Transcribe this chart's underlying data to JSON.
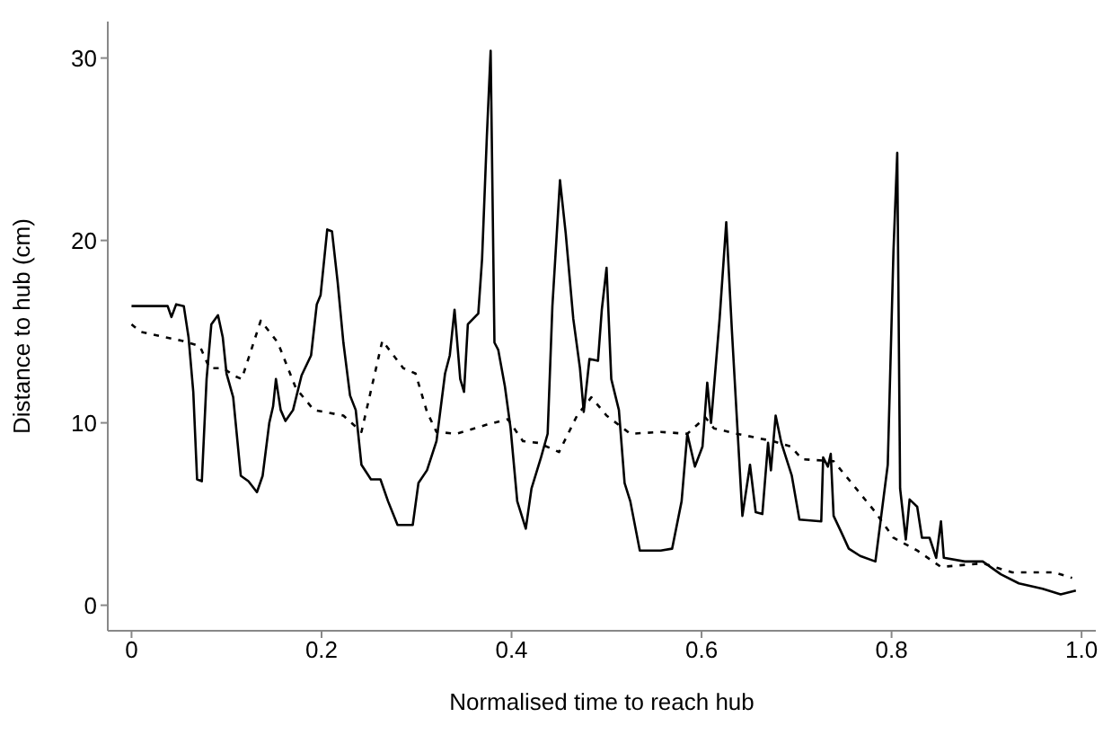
{
  "chart_data": {
    "type": "line",
    "xlabel": "Normalised time to reach hub",
    "ylabel": "Distance to hub  (cm)",
    "xlim": [
      -0.025,
      1.015
    ],
    "ylim": [
      -1.4,
      32
    ],
    "xticks": [
      0,
      0.2,
      0.4,
      0.6,
      0.8,
      {
        "value": 1,
        "label": "1.0"
      }
    ],
    "yticks": [
      0,
      10,
      20,
      30
    ],
    "marker": "none",
    "series": [
      {
        "color": "#000000",
        "line_style": "solid",
        "x": [
          0,
          0.038,
          0.042,
          0.047,
          0.055,
          0.06,
          0.065,
          0.069,
          0.074,
          0.079,
          0.084,
          0.091,
          0.096,
          0.1,
          0.107,
          0.115,
          0.123,
          0.132,
          0.138,
          0.145,
          0.149,
          0.152,
          0.157,
          0.162,
          0.17,
          0.179,
          0.189,
          0.195,
          0.199,
          0.206,
          0.211,
          0.217,
          0.223,
          0.23,
          0.236,
          0.242,
          0.252,
          0.262,
          0.27,
          0.28,
          0.296,
          0.302,
          0.311,
          0.321,
          0.33,
          0.335,
          0.34,
          0.346,
          0.35,
          0.354,
          0.365,
          0.369,
          0.374,
          0.378,
          0.382,
          0.386,
          0.393,
          0.399,
          0.406,
          0.415,
          0.421,
          0.431,
          0.438,
          0.443,
          0.451,
          0.457,
          0.465,
          0.472,
          0.476,
          0.482,
          0.491,
          0.495,
          0.5,
          0.505,
          0.513,
          0.519,
          0.525,
          0.535,
          0.557,
          0.569,
          0.579,
          0.585,
          0.593,
          0.601,
          0.606,
          0.61,
          0.619,
          0.626,
          0.632,
          0.637,
          0.643,
          0.651,
          0.657,
          0.664,
          0.67,
          0.673,
          0.678,
          0.684,
          0.695,
          0.703,
          0.726,
          0.728,
          0.733,
          0.736,
          0.739,
          0.748,
          0.755,
          0.767,
          0.783,
          0.796,
          0.802,
          0.806,
          0.809,
          0.815,
          0.819,
          0.827,
          0.832,
          0.84,
          0.847,
          0.852,
          0.855,
          0.877,
          0.896,
          0.915,
          0.934,
          0.959,
          0.978,
          0.994
        ],
        "values": [
          16.4,
          16.4,
          15.8,
          16.5,
          16.4,
          14.7,
          11.7,
          6.9,
          6.8,
          12.4,
          15.4,
          15.9,
          14.7,
          12.7,
          11.4,
          7.1,
          6.8,
          6.2,
          7.1,
          10.0,
          10.9,
          12.4,
          10.7,
          10.1,
          10.7,
          12.6,
          13.7,
          16.5,
          17.0,
          20.6,
          20.5,
          17.7,
          14.4,
          11.5,
          10.7,
          7.7,
          6.9,
          6.9,
          5.7,
          4.4,
          4.4,
          6.7,
          7.4,
          9.0,
          12.7,
          13.7,
          16.2,
          12.4,
          11.7,
          15.4,
          16.0,
          19.0,
          25.7,
          30.4,
          14.4,
          14.0,
          12.0,
          9.7,
          5.7,
          4.2,
          6.4,
          8.1,
          9.4,
          16.4,
          23.3,
          20.4,
          15.7,
          13.0,
          10.6,
          13.5,
          13.4,
          16.2,
          18.5,
          12.4,
          10.7,
          6.7,
          5.7,
          3.0,
          3.0,
          3.1,
          5.7,
          9.4,
          7.6,
          8.7,
          12.2,
          10.0,
          15.7,
          21.0,
          15.0,
          10.4,
          4.9,
          7.7,
          5.1,
          5.0,
          8.9,
          7.4,
          10.4,
          8.9,
          7.1,
          4.7,
          4.6,
          8.1,
          7.6,
          8.3,
          4.9,
          3.9,
          3.1,
          2.7,
          2.4,
          7.7,
          19.4,
          24.8,
          6.4,
          3.6,
          5.8,
          5.4,
          3.7,
          3.7,
          2.6,
          4.6,
          2.6,
          2.4,
          2.4,
          1.7,
          1.2,
          0.9,
          0.6,
          0.8
        ]
      },
      {
        "color": "#000000",
        "line_style": "dashed",
        "x": [
          0,
          0.009,
          0.035,
          0.053,
          0.072,
          0.082,
          0.097,
          0.107,
          0.116,
          0.136,
          0.154,
          0.173,
          0.192,
          0.223,
          0.242,
          0.264,
          0.286,
          0.299,
          0.311,
          0.321,
          0.342,
          0.374,
          0.396,
          0.412,
          0.428,
          0.45,
          0.469,
          0.484,
          0.5,
          0.525,
          0.557,
          0.585,
          0.604,
          0.613,
          0.637,
          0.675,
          0.694,
          0.706,
          0.739,
          0.758,
          0.783,
          0.802,
          0.827,
          0.852,
          0.896,
          0.927,
          0.952,
          0.971,
          0.99
        ],
        "values": [
          15.4,
          15.0,
          14.7,
          14.5,
          14.2,
          13.0,
          13.0,
          12.6,
          12.4,
          15.6,
          14.4,
          11.9,
          10.7,
          10.4,
          9.5,
          14.5,
          13.0,
          12.7,
          10.6,
          9.5,
          9.4,
          9.9,
          10.2,
          9.0,
          8.9,
          8.4,
          10.4,
          11.4,
          10.4,
          9.4,
          9.5,
          9.4,
          10.3,
          9.7,
          9.4,
          9.0,
          8.7,
          8.0,
          7.9,
          6.7,
          5.1,
          3.7,
          3.0,
          2.1,
          2.3,
          1.8,
          1.8,
          1.8,
          1.5
        ]
      }
    ]
  }
}
